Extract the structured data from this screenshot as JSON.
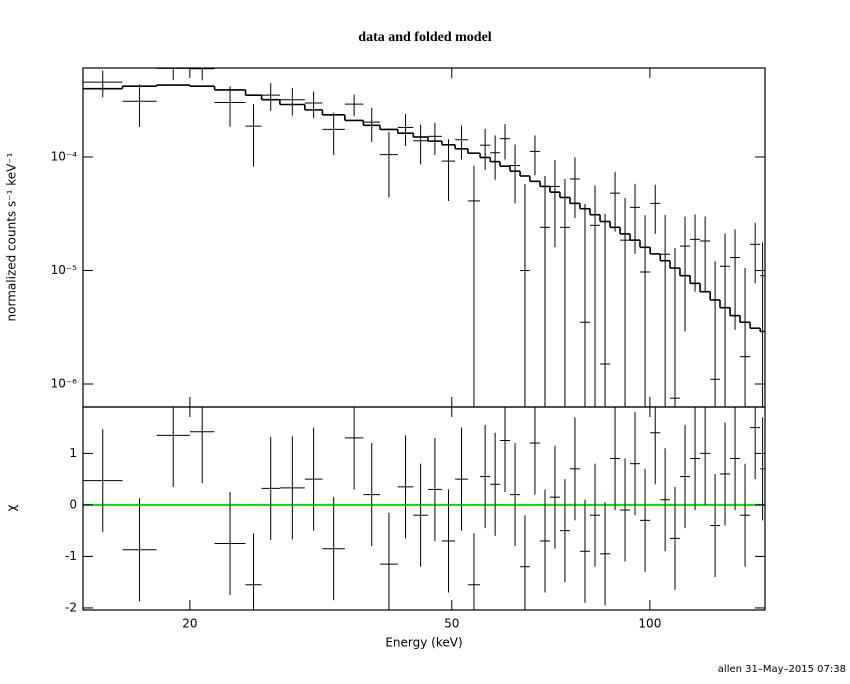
{
  "chart_data": [
    {
      "type": "spectrum",
      "title": "data and folded model",
      "ylabel": "normalized counts s⁻¹ keV⁻¹",
      "log_x": true,
      "log_y": true,
      "xlim": [
        13.76,
        149.6
      ],
      "ylim": [
        6.27e-07,
        0.000608
      ],
      "yticks": [
        {
          "value": 1e-06,
          "label": "10⁻⁶"
        },
        {
          "value": 1e-05,
          "label": "10⁻⁵"
        },
        {
          "value": 0.0001,
          "label": "10⁻⁴"
        }
      ],
      "bins": [
        13.76,
        15.8,
        17.8,
        20.0,
        21.8,
        24.3,
        25.7,
        27.4,
        29.9,
        31.8,
        34.4,
        36.7,
        38.9,
        41.4,
        43.7,
        46.0,
        48.3,
        50.6,
        52.9,
        55.2,
        57.2,
        59.2,
        61.3,
        63.5,
        65.7,
        68.1,
        70.5,
        73.0,
        75.6,
        78.3,
        81.1,
        84.0,
        87.0,
        90.1,
        93.3,
        96.6,
        100.1,
        103.7,
        107.3,
        111.1,
        115.1,
        119.2,
        123.5,
        127.8,
        132.4,
        137.1,
        142.0,
        147.1,
        149.6
      ],
      "data": {
        "color": "#000000",
        "values": [
          0.000456,
          0.00031,
          0.000604,
          0.000599,
          0.000302,
          0.000187,
          0.000351,
          0.000319,
          0.000299,
          0.000175,
          0.000292,
          0.000203,
          0.000105,
          0.000182,
          0.000139,
          0.000152,
          9.2e-05,
          0.000142,
          4.1e-05,
          0.000127,
          0.000109,
          0.000145,
          8.4e-05,
          1e-05,
          0.000112,
          2.4e-05,
          5.5e-05,
          2.4e-05,
          6.4e-05,
          3.5e-06,
          2.5e-05,
          1.5e-06,
          4.8e-05,
          1.85e-05,
          3.6e-05,
          9.7e-06,
          3.9e-05,
          1.39e-05,
          7.5e-07,
          1.64e-05,
          1.88e-05,
          1.82e-05,
          1.1e-06,
          1.09e-05,
          1.3e-05,
          1.74e-06,
          1.7e-05,
          9e-06
        ],
        "errors": [
          0.00012,
          0.000126,
          0.000129,
          0.000126,
          0.000117,
          0.000105,
          9.6e-05,
          8.7e-05,
          7.8e-05,
          7.1e-05,
          6.3e-05,
          6.7e-05,
          6.1e-05,
          5.7e-05,
          5.3e-05,
          4.8e-05,
          5.1e-05,
          4.7e-05,
          4.3e-05,
          5e-05,
          4.6e-05,
          5e-05,
          4.5e-05,
          4.8e-05,
          4.3e-05,
          4.4e-05,
          3.9e-05,
          4e-05,
          3.5e-05,
          3.5e-05,
          3.1e-05,
          3e-05,
          2.6e-05,
          2.5e-05,
          2.2e-05,
          2.1e-05,
          1.8e-05,
          1.7e-05,
          1.5e-05,
          1.35e-05,
          1.23e-05,
          1.17e-05,
          1.1e-05,
          1.03e-05,
          1e-05,
          8.8e-06,
          9.3e-06,
          8.7e-06
        ]
      },
      "model": {
        "color": "#000000",
        "values": [
          0.0004,
          0.00042,
          0.00043,
          0.00042,
          0.00039,
          0.00035,
          0.00032,
          0.00029,
          0.00026,
          0.000235,
          0.00021,
          0.00019,
          0.000175,
          0.000162,
          0.00015,
          0.000138,
          0.000128,
          0.000118,
          0.000108,
          9.9e-05,
          9.1e-05,
          8.3e-05,
          7.5e-05,
          6.8e-05,
          6.1e-05,
          5.5e-05,
          4.9e-05,
          4.4e-05,
          3.9e-05,
          3.5e-05,
          3.1e-05,
          2.7e-05,
          2.4e-05,
          2.1e-05,
          1.85e-05,
          1.6e-05,
          1.4e-05,
          1.22e-05,
          1.05e-05,
          9e-06,
          7.7e-06,
          6.5e-06,
          5.5e-06,
          4.7e-06,
          4e-06,
          3.5e-06,
          3.1e-06,
          2.9e-06
        ]
      }
    },
    {
      "type": "residual",
      "ylabel": "χ",
      "xlabel": "Energy (keV)",
      "xticks": [
        20,
        50,
        100
      ],
      "ylim": [
        -2.04,
        1.9
      ],
      "yticks": [
        -2,
        -1,
        0,
        1
      ],
      "color": "#000000",
      "error": 1,
      "reference_line": {
        "value": 0,
        "color": "#00e000"
      },
      "values": [
        0.47,
        -0.87,
        1.35,
        1.42,
        -0.75,
        -1.55,
        0.32,
        0.33,
        0.5,
        -0.85,
        1.3,
        0.2,
        -1.15,
        0.35,
        -0.2,
        0.3,
        -0.7,
        0.5,
        -1.55,
        0.55,
        0.4,
        1.25,
        0.2,
        -1.2,
        1.2,
        -0.7,
        0.15,
        -0.5,
        0.7,
        -0.9,
        -0.2,
        -0.95,
        0.9,
        -0.1,
        0.8,
        -0.3,
        1.4,
        0.1,
        -0.65,
        0.55,
        0.9,
        1.0,
        -0.4,
        0.6,
        0.9,
        -0.2,
        1.5,
        0.7
      ]
    }
  ],
  "footer": "allen 31–May–2015 07:38"
}
